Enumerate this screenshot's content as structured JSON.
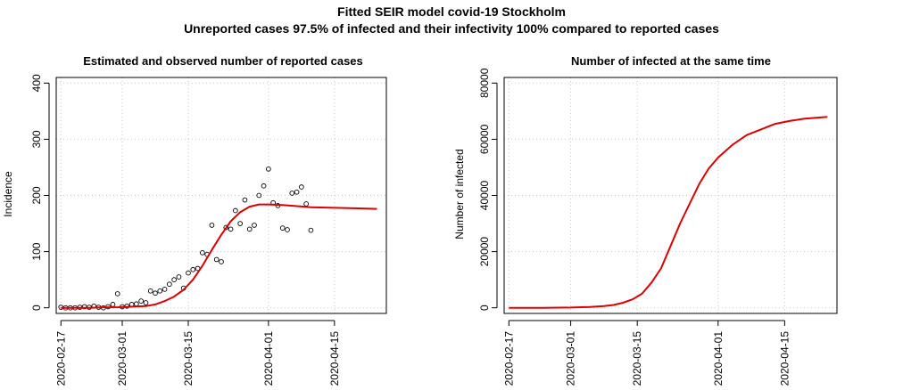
{
  "figure": {
    "title_line1": "Fitted SEIR model covid-19 Stockholm",
    "title_line2": "Unreported cases 97.5% of infected and their infectivity 100% compared to reported cases"
  },
  "chart_data": [
    {
      "type": "scatter",
      "title": "Estimated and observed number of reported cases",
      "xlabel": "",
      "ylabel": "Incidence",
      "x_type": "date",
      "xlim": [
        "2020-02-16",
        "2020-04-26"
      ],
      "ylim": [
        -10,
        410
      ],
      "x_ticks": [
        "2020-02-17",
        "2020-03-01",
        "2020-03-15",
        "2020-04-01",
        "2020-04-15"
      ],
      "y_ticks": [
        0,
        100,
        200,
        300,
        400
      ],
      "grid": true,
      "observed_point_style": "open circle, black",
      "fit_line_color": "#dd0000",
      "observed": {
        "x": [
          "2020-02-17",
          "2020-02-18",
          "2020-02-19",
          "2020-02-20",
          "2020-02-21",
          "2020-02-22",
          "2020-02-23",
          "2020-02-24",
          "2020-02-25",
          "2020-02-26",
          "2020-02-27",
          "2020-02-28",
          "2020-02-29",
          "2020-03-01",
          "2020-03-02",
          "2020-03-03",
          "2020-03-04",
          "2020-03-05",
          "2020-03-06",
          "2020-03-07",
          "2020-03-08",
          "2020-03-09",
          "2020-03-10",
          "2020-03-11",
          "2020-03-12",
          "2020-03-13",
          "2020-03-14",
          "2020-03-15",
          "2020-03-16",
          "2020-03-17",
          "2020-03-18",
          "2020-03-19",
          "2020-03-20",
          "2020-03-21",
          "2020-03-22",
          "2020-03-23",
          "2020-03-24",
          "2020-03-25",
          "2020-03-26",
          "2020-03-27",
          "2020-03-28",
          "2020-03-29",
          "2020-03-30",
          "2020-03-31",
          "2020-04-01",
          "2020-04-02",
          "2020-04-03",
          "2020-04-04",
          "2020-04-05",
          "2020-04-06",
          "2020-04-07",
          "2020-04-08",
          "2020-04-09",
          "2020-04-10"
        ],
        "y": [
          1,
          0,
          0,
          0,
          1,
          2,
          1,
          3,
          1,
          0,
          2,
          6,
          25,
          2,
          3,
          6,
          7,
          12,
          9,
          30,
          26,
          30,
          33,
          42,
          50,
          55,
          35,
          62,
          68,
          70,
          98,
          95,
          147,
          86,
          82,
          143,
          140,
          173,
          150,
          192,
          140,
          147,
          200,
          217,
          247,
          187,
          182,
          142,
          139,
          204,
          206,
          215,
          185,
          138
        ]
      },
      "fitted": {
        "x": [
          "2020-02-17",
          "2020-02-20",
          "2020-02-23",
          "2020-02-26",
          "2020-02-29",
          "2020-03-03",
          "2020-03-06",
          "2020-03-08",
          "2020-03-10",
          "2020-03-12",
          "2020-03-14",
          "2020-03-16",
          "2020-03-18",
          "2020-03-20",
          "2020-03-22",
          "2020-03-24",
          "2020-03-26",
          "2020-03-28",
          "2020-03-30",
          "2020-04-01",
          "2020-04-04",
          "2020-04-07",
          "2020-04-10",
          "2020-04-15",
          "2020-04-20",
          "2020-04-24"
        ],
        "y": [
          0,
          0,
          0,
          1,
          1,
          2,
          3,
          6,
          12,
          20,
          32,
          50,
          75,
          103,
          130,
          154,
          170,
          180,
          184,
          184,
          183,
          181,
          179,
          178,
          177,
          176
        ]
      }
    },
    {
      "type": "line",
      "title": "Number of infected at the same time",
      "xlabel": "",
      "ylabel": "Number of infected",
      "x_type": "date",
      "xlim": [
        "2020-02-16",
        "2020-04-26"
      ],
      "ylim": [
        -2000,
        82000
      ],
      "x_ticks": [
        "2020-02-17",
        "2020-03-01",
        "2020-03-15",
        "2020-04-01",
        "2020-04-15"
      ],
      "y_ticks": [
        0,
        20000,
        40000,
        60000,
        80000
      ],
      "grid": true,
      "line_color": "#dd0000",
      "series": [
        {
          "x": [
            "2020-02-17",
            "2020-02-24",
            "2020-03-01",
            "2020-03-05",
            "2020-03-08",
            "2020-03-10",
            "2020-03-12",
            "2020-03-14",
            "2020-03-16",
            "2020-03-18",
            "2020-03-20",
            "2020-03-22",
            "2020-03-24",
            "2020-03-26",
            "2020-03-28",
            "2020-03-30",
            "2020-04-01",
            "2020-04-04",
            "2020-04-07",
            "2020-04-10",
            "2020-04-13",
            "2020-04-16",
            "2020-04-19",
            "2020-04-24"
          ],
          "y": [
            0,
            0,
            100,
            300,
            600,
            1000,
            1800,
            3000,
            5000,
            9000,
            14000,
            22000,
            30000,
            37000,
            44000,
            49500,
            53500,
            58000,
            61500,
            63500,
            65500,
            66500,
            67300,
            68000
          ]
        }
      ]
    }
  ]
}
